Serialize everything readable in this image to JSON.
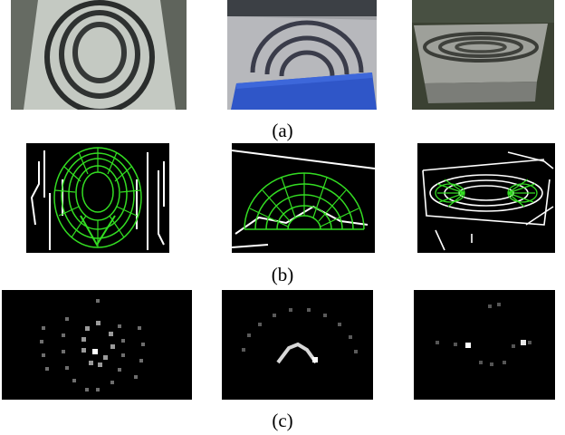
{
  "figure": {
    "rows": [
      {
        "caption": "(a)",
        "panels": [
          "photo-left",
          "photo-middle",
          "photo-right"
        ]
      },
      {
        "caption": "(b)",
        "panels": [
          "edges-left",
          "edges-middle",
          "edges-right"
        ]
      },
      {
        "caption": "(c)",
        "panels": [
          "votes-left",
          "votes-middle",
          "votes-right"
        ]
      }
    ]
  },
  "colors": {
    "background": "#ffffff",
    "edge": "#ffffff",
    "overlay": "#33dd22",
    "map_bg": "#000000",
    "blue_object": "#2f56c8"
  }
}
